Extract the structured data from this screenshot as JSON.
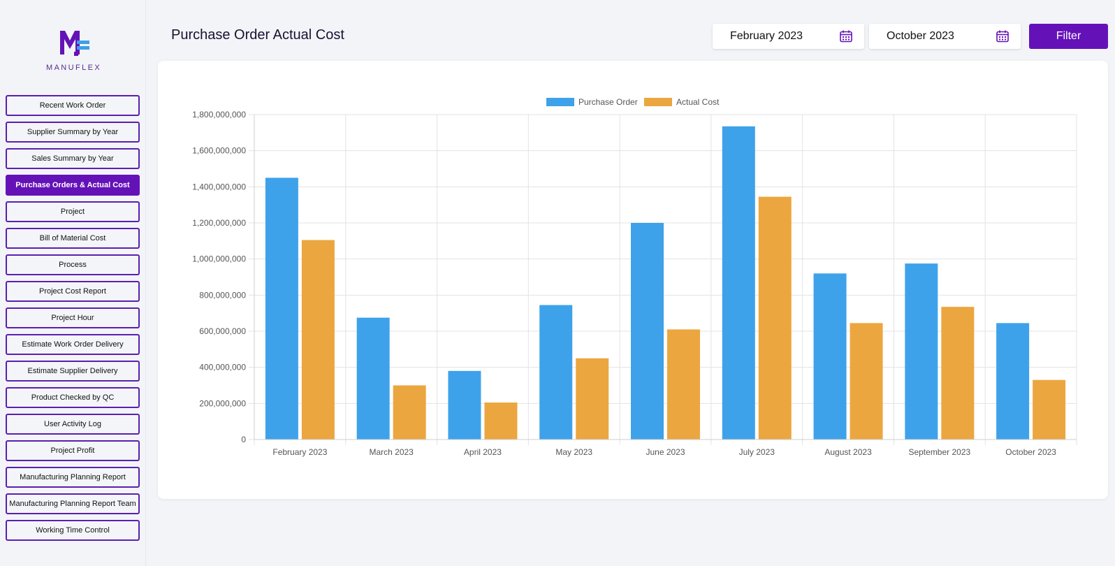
{
  "brand": {
    "name": "MANUFLEX",
    "primary": "#6412b8",
    "accent": "#3d9fe8"
  },
  "sidebar": {
    "items": [
      {
        "label": "Recent Work Order",
        "active": false
      },
      {
        "label": "Supplier Summary by Year",
        "active": false
      },
      {
        "label": "Sales Summary by Year",
        "active": false
      },
      {
        "label": "Purchase Orders & Actual Cost",
        "active": true
      },
      {
        "label": "Project",
        "active": false
      },
      {
        "label": "Bill of Material Cost",
        "active": false
      },
      {
        "label": "Process",
        "active": false
      },
      {
        "label": "Project Cost Report",
        "active": false
      },
      {
        "label": "Project Hour",
        "active": false
      },
      {
        "label": "Estimate Work Order Delivery",
        "active": false
      },
      {
        "label": "Estimate Supplier Delivery",
        "active": false
      },
      {
        "label": "Product Checked by QC",
        "active": false
      },
      {
        "label": "User Activity Log",
        "active": false
      },
      {
        "label": "Project Profit",
        "active": false
      },
      {
        "label": "Manufacturing Planning Report",
        "active": false
      },
      {
        "label": "Manufacturing Planning Report Team",
        "active": false
      },
      {
        "label": "Working Time Control",
        "active": false
      }
    ]
  },
  "header": {
    "title": "Purchase Order Actual Cost",
    "start_date": "February 2023",
    "end_date": "October 2023",
    "filter_label": "Filter",
    "calendar_icon": "calendar-icon"
  },
  "chart_data": {
    "type": "bar",
    "categories": [
      "February 2023",
      "March 2023",
      "April 2023",
      "May 2023",
      "June 2023",
      "July 2023",
      "August 2023",
      "September 2023",
      "October 2023"
    ],
    "series": [
      {
        "name": "Purchase Order",
        "color": "#3ea2ea",
        "values": [
          1450000000,
          675000000,
          380000000,
          745000000,
          1200000000,
          1735000000,
          920000000,
          975000000,
          645000000
        ]
      },
      {
        "name": "Actual Cost",
        "color": "#eca63f",
        "values": [
          1105000000,
          300000000,
          205000000,
          450000000,
          610000000,
          1345000000,
          645000000,
          735000000,
          330000000
        ]
      }
    ],
    "ylim": [
      0,
      1800000000
    ],
    "yticks": [
      "0",
      "200,000,000",
      "400,000,000",
      "600,000,000",
      "800,000,000",
      "1,000,000,000",
      "1,200,000,000",
      "1,400,000,000",
      "1,600,000,000",
      "1,800,000,000"
    ],
    "legend": "top-center",
    "grid": true
  }
}
